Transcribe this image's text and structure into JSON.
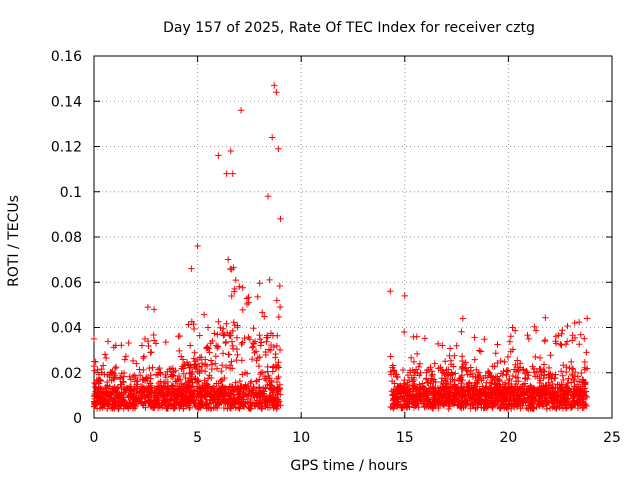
{
  "chart_data": {
    "type": "scatter",
    "title": "Day 157 of 2025, Rate Of TEC Index for receiver cztg",
    "xlabel": "GPS time / hours",
    "ylabel": "ROTI / TECUs",
    "xlim": [
      0,
      25
    ],
    "ylim": [
      0,
      0.16
    ],
    "xticks": [
      "0",
      "5",
      "10",
      "15",
      "20",
      "25"
    ],
    "yticks": [
      "0",
      "0.02",
      "0.04",
      "0.06",
      "0.08",
      "0.1",
      "0.12",
      "0.14",
      "0.16"
    ],
    "grid": true,
    "marker": "+",
    "color": "#ff0000",
    "series": [
      {
        "name": "ROTI",
        "segments": [
          {
            "x": [
              0.0,
              0.5,
              1.0,
              1.5,
              2.0,
              2.5,
              3.0,
              3.5,
              4.0,
              4.5,
              5.0,
              5.5,
              6.0,
              6.5,
              7.0,
              7.5,
              8.0,
              8.5,
              9.0
            ],
            "y": [
              0.018,
              0.016,
              0.014,
              0.014,
              0.015,
              0.016,
              0.017,
              0.016,
              0.016,
              0.018,
              0.022,
              0.026,
              0.032,
              0.038,
              0.036,
              0.032,
              0.031,
              0.034,
              0.032
            ]
          },
          {
            "x": [
              14.3,
              14.8,
              15.3,
              15.8,
              16.3,
              16.8,
              17.3,
              17.8,
              18.3,
              18.8,
              19.3,
              19.8,
              20.3,
              20.8,
              21.3,
              21.8,
              22.3,
              22.8,
              23.3,
              23.8
            ],
            "y": [
              0.018,
              0.017,
              0.016,
              0.015,
              0.016,
              0.016,
              0.015,
              0.016,
              0.016,
              0.015,
              0.015,
              0.015,
              0.016,
              0.017,
              0.018,
              0.019,
              0.019,
              0.018,
              0.019,
              0.02
            ]
          }
        ],
        "notable_points": [
          {
            "x": 0.0,
            "y": 0.035
          },
          {
            "x": 2.6,
            "y": 0.049
          },
          {
            "x": 2.9,
            "y": 0.048
          },
          {
            "x": 4.7,
            "y": 0.066
          },
          {
            "x": 5.0,
            "y": 0.076
          },
          {
            "x": 6.0,
            "y": 0.116
          },
          {
            "x": 6.4,
            "y": 0.108
          },
          {
            "x": 6.6,
            "y": 0.118
          },
          {
            "x": 6.7,
            "y": 0.108
          },
          {
            "x": 7.1,
            "y": 0.136
          },
          {
            "x": 8.4,
            "y": 0.098
          },
          {
            "x": 8.6,
            "y": 0.124
          },
          {
            "x": 8.7,
            "y": 0.147
          },
          {
            "x": 8.8,
            "y": 0.144
          },
          {
            "x": 8.9,
            "y": 0.119
          },
          {
            "x": 9.0,
            "y": 0.088
          },
          {
            "x": 14.3,
            "y": 0.056
          },
          {
            "x": 15.0,
            "y": 0.054
          },
          {
            "x": 17.8,
            "y": 0.044
          },
          {
            "x": 20.2,
            "y": 0.04
          },
          {
            "x": 22.3,
            "y": 0.033
          },
          {
            "x": 23.2,
            "y": 0.042
          },
          {
            "x": 23.8,
            "y": 0.044
          }
        ]
      }
    ]
  }
}
